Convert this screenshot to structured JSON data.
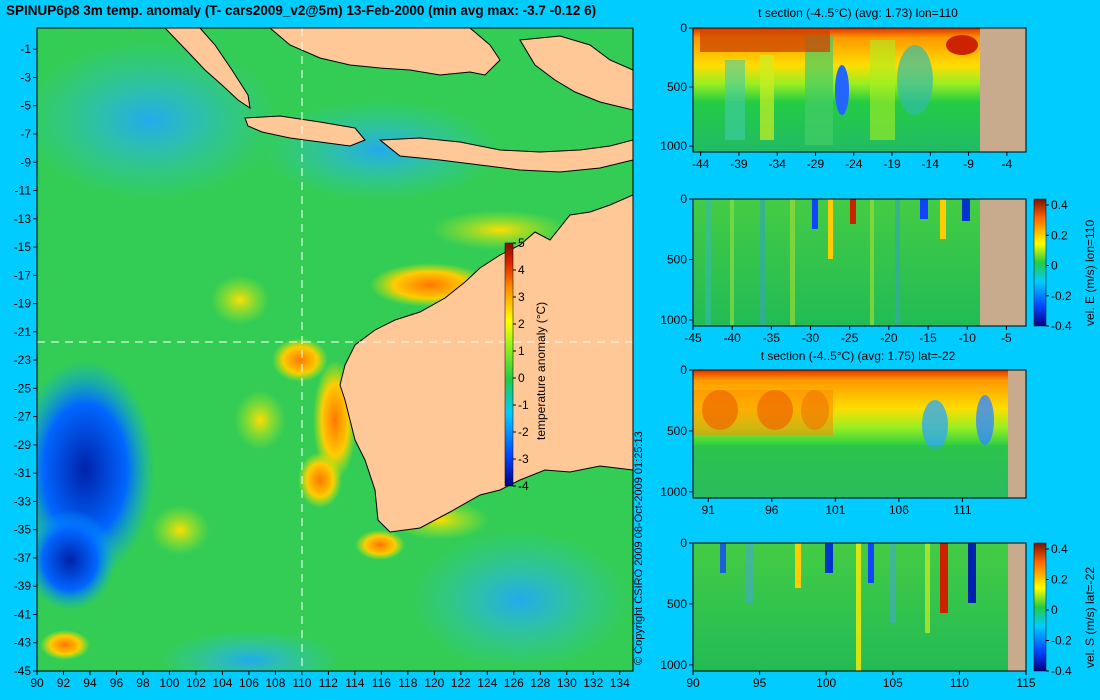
{
  "title": "SPINUP6p8 3m temp. anomaly (T- cars2009_v2@5m) 13-Feb-2000 (min avg max: -3.7 -0.12 6)",
  "copyright": "© Copyright CSIRO 2009   08-Oct-2009 01:25:13",
  "colors": {
    "background": "#00ccff",
    "land": "#ffc896",
    "section_land": "#c8aa8c",
    "ocean_base": "#22cc44"
  },
  "chart_data": [
    {
      "type": "heatmap",
      "name": "map",
      "x_ticks": [
        90,
        92,
        94,
        96,
        98,
        100,
        102,
        104,
        106,
        108,
        110,
        112,
        114,
        116,
        118,
        120,
        122,
        124,
        126,
        128,
        130,
        132,
        134
      ],
      "y_ticks": [
        -1,
        -3,
        -5,
        -7,
        -9,
        -11,
        -13,
        -15,
        -17,
        -19,
        -21,
        -23,
        -25,
        -27,
        -29,
        -31,
        -33,
        -35,
        -37,
        -39,
        -41,
        -43,
        -45
      ],
      "xlim": [
        90,
        135
      ],
      "ylim": [
        -45,
        0.5
      ],
      "crosshair": {
        "lon": 110,
        "lat": -22
      },
      "colorbar": {
        "label": "temperature anomaly (°C)",
        "ticks": [
          5,
          4,
          3,
          2,
          1,
          0,
          -1,
          -2,
          -3,
          -4
        ],
        "range": [
          -4,
          5
        ]
      }
    },
    {
      "type": "heatmap",
      "name": "t-section-lon",
      "title": "t section (-4..5°C) (avg: 1.73) lon=110",
      "x_ticks": [
        -44,
        -39,
        -34,
        -29,
        -24,
        -19,
        -14,
        -9,
        -4
      ],
      "y_ticks": [
        0,
        500,
        1000
      ]
    },
    {
      "type": "heatmap",
      "name": "velE-section-lon",
      "x_ticks": [
        -45,
        -40,
        -35,
        -30,
        -25,
        -20,
        -15,
        -10,
        -5
      ],
      "y_ticks": [
        0,
        500,
        1000
      ],
      "colorbar": {
        "label": "vel. E (m/s) lon=110",
        "ticks": [
          0.4,
          0.2,
          0,
          -0.2,
          -0.4
        ]
      }
    },
    {
      "type": "heatmap",
      "name": "t-section-lat",
      "title": "t section (-4..5°C) (avg: 1.75) lat=-22",
      "x_ticks": [
        91,
        96,
        101,
        106,
        111
      ],
      "y_ticks": [
        0,
        500,
        1000
      ]
    },
    {
      "type": "heatmap",
      "name": "velS-section-lat",
      "x_ticks": [
        90,
        95,
        100,
        105,
        110,
        115
      ],
      "y_ticks": [
        0,
        500,
        1000
      ],
      "colorbar": {
        "label": "vel. S (m/s) lat=-22",
        "ticks": [
          0.4,
          0.2,
          0,
          -0.2,
          -0.4
        ]
      }
    }
  ]
}
